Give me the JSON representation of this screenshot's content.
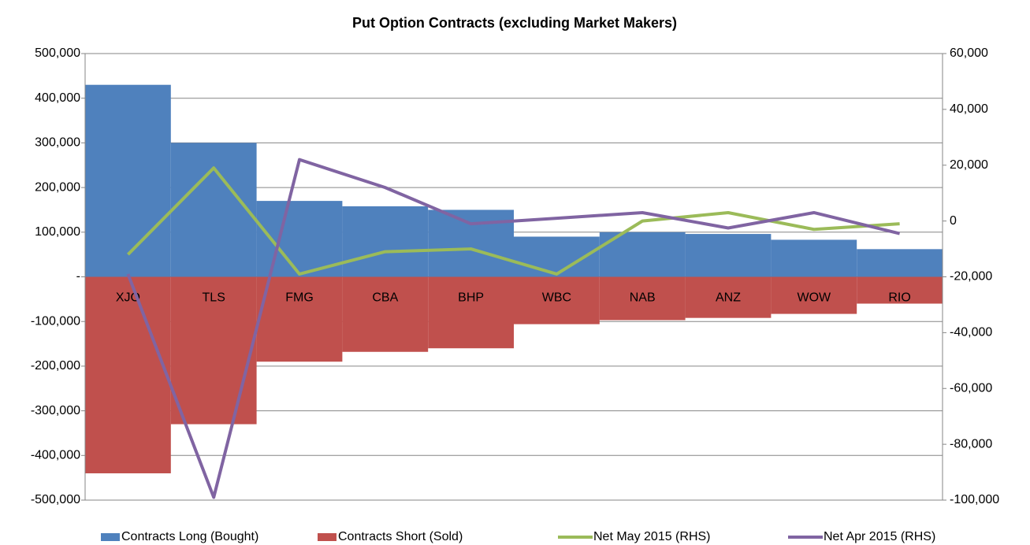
{
  "chart_data": {
    "type": "bar",
    "title": "Put Option Contracts (excluding Market Makers)",
    "categories": [
      "XJO",
      "TLS",
      "FMG",
      "CBA",
      "BHP",
      "WBC",
      "NAB",
      "ANZ",
      "WOW",
      "RIO"
    ],
    "series": [
      {
        "name": "Contracts Long (Bought)",
        "type": "bar",
        "color": "#4f81bd",
        "values": [
          430000,
          300000,
          170000,
          158000,
          150000,
          90000,
          100000,
          96000,
          83000,
          62000
        ]
      },
      {
        "name": "Contracts Short (Sold)",
        "type": "bar",
        "color": "#c0504d",
        "values": [
          -440000,
          -330000,
          -190000,
          -168000,
          -160000,
          -106000,
          -97000,
          -92000,
          -83000,
          -60000
        ]
      },
      {
        "name": "Net May 2015 (RHS)",
        "type": "line",
        "axis": "y2",
        "color": "#9bbb59",
        "values": [
          -12000,
          19000,
          -19000,
          -11000,
          -10000,
          -19000,
          0,
          3000,
          -3000,
          -1000
        ]
      },
      {
        "name": "Net Apr 2015 (RHS)",
        "type": "line",
        "axis": "y2",
        "color": "#8064a2",
        "values": [
          -19000,
          -99000,
          22000,
          12000,
          -1000,
          1000,
          3000,
          -2500,
          3000,
          -4500
        ]
      }
    ],
    "ylim": [
      -500000,
      500000
    ],
    "yticks": [
      {
        "value": -500000,
        "label": "-500,000"
      },
      {
        "value": -400000,
        "label": "-400,000"
      },
      {
        "value": -300000,
        "label": "-300,000"
      },
      {
        "value": -200000,
        "label": "-200,000"
      },
      {
        "value": -100000,
        "label": "-100,000"
      },
      {
        "value": 0,
        "label": "-"
      },
      {
        "value": 100000,
        "label": "100,000"
      },
      {
        "value": 200000,
        "label": "200,000"
      },
      {
        "value": 300000,
        "label": "300,000"
      },
      {
        "value": 400000,
        "label": "400,000"
      },
      {
        "value": 500000,
        "label": "500,000"
      }
    ],
    "y2lim": [
      -100000,
      60000
    ],
    "y2ticks": [
      {
        "value": -100000,
        "label": "-100,000"
      },
      {
        "value": -80000,
        "label": "-80,000"
      },
      {
        "value": -60000,
        "label": "-60,000"
      },
      {
        "value": -40000,
        "label": "-40,000"
      },
      {
        "value": -20000,
        "label": "-20,000"
      },
      0,
      {
        "value": 20000,
        "label": "20,000"
      },
      {
        "value": 40000,
        "label": "40,000"
      },
      {
        "value": 60000,
        "label": "60,000"
      }
    ],
    "grid": true,
    "legend": "bottom"
  }
}
